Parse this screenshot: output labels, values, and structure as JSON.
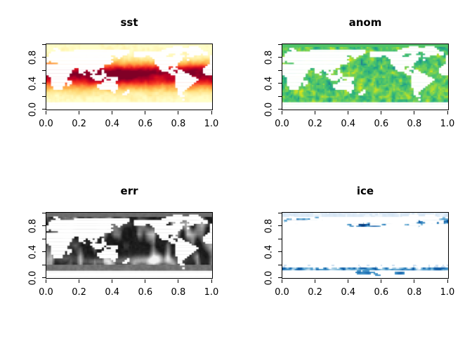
{
  "figure": {
    "background": "#ffffff",
    "text_color": "#000000",
    "layout": "2x2 panel raster plot"
  },
  "axes": {
    "x_tick_values": [
      0,
      0.2,
      0.4,
      0.6,
      0.8,
      1
    ],
    "x_tick_labels": [
      "0.0",
      "0.2",
      "0.4",
      "0.6",
      "0.8",
      "1.0"
    ],
    "y_tick_values": [
      0,
      0.2,
      0.4,
      0.6,
      0.8,
      1
    ],
    "y_labeled_ticks": [
      {
        "value": 0,
        "label": "0.0"
      },
      {
        "value": 0.4,
        "label": "0.4"
      },
      {
        "value": 0.8,
        "label": "0.8"
      }
    ]
  },
  "chart_data": [
    {
      "type": "heatmap",
      "kind": "sst",
      "title": "sst",
      "xlim": [
        0,
        1
      ],
      "ylim": [
        0,
        1
      ],
      "x_tick_labels": [
        "0.0",
        "0.2",
        "0.4",
        "0.6",
        "0.8",
        "1.0"
      ],
      "y_tick_labels": [
        "0.0",
        "0.4",
        "0.8"
      ],
      "palette": [
        "#FFFFCC",
        "#FFEDA0",
        "#FED976",
        "#FEB24C",
        "#FD8D3C",
        "#FC4E2A",
        "#E31A1C",
        "#BD0026",
        "#800026"
      ],
      "lat_profile": [
        [
          -90,
          0.02
        ],
        [
          -68,
          0.02
        ],
        [
          -55,
          0.06
        ],
        [
          -45,
          0.13
        ],
        [
          -35,
          0.3
        ],
        [
          -25,
          0.5
        ],
        [
          -15,
          0.72
        ],
        [
          -5,
          0.88
        ],
        [
          5,
          0.97
        ],
        [
          10,
          1.0
        ],
        [
          18,
          0.9
        ],
        [
          25,
          0.72
        ],
        [
          32,
          0.55
        ],
        [
          40,
          0.35
        ],
        [
          48,
          0.2
        ],
        [
          55,
          0.12
        ],
        [
          62,
          0.07
        ],
        [
          70,
          0.03
        ],
        [
          90,
          0.02
        ]
      ],
      "description": "Global sea-surface temperature on a 0-360 longitude grid; dark red tropical band fading to pale cream at high latitudes; land and Antarctica white.",
      "seed": 11
    },
    {
      "type": "heatmap",
      "kind": "anom",
      "title": "anom",
      "xlim": [
        0,
        1
      ],
      "ylim": [
        0,
        1
      ],
      "x_tick_labels": [
        "0.0",
        "0.2",
        "0.4",
        "0.6",
        "0.8",
        "1.0"
      ],
      "y_tick_labels": [
        "0.0",
        "0.4",
        "0.8"
      ],
      "palette": [
        "#2C728E",
        "#21918C",
        "#27AD81",
        "#42BE71",
        "#5EC962",
        "#84D44B",
        "#B5DE2B",
        "#DFE318",
        "#FDE725"
      ],
      "description": "SST anomaly field; mottled mid-green ocean with yellow and teal speckles, solid green strip across the Arctic top edge; land white.",
      "seed": 23
    },
    {
      "type": "heatmap",
      "kind": "err",
      "title": "err",
      "xlim": [
        0,
        1
      ],
      "ylim": [
        0,
        1
      ],
      "x_tick_labels": [
        "0.0",
        "0.2",
        "0.4",
        "0.6",
        "0.8",
        "1.0"
      ],
      "y_tick_labels": [
        "0.0",
        "0.4",
        "0.8"
      ],
      "palette": [
        "#0B0B0B",
        "#FFFFFF"
      ],
      "description": "SST error field in grayscale; mostly near-black ocean with gray blotchy columns, uniform gray polar strips, light whitish glow band in the southern tropics around x 0.5-0.75; land white.",
      "seed": 37
    },
    {
      "type": "heatmap",
      "kind": "ice",
      "title": "ice",
      "xlim": [
        0,
        1
      ],
      "ylim": [
        0,
        1
      ],
      "x_tick_labels": [
        "0.0",
        "0.2",
        "0.4",
        "0.6",
        "0.8",
        "1.0"
      ],
      "y_tick_labels": [
        "0.0",
        "0.4",
        "0.8"
      ],
      "palette": [
        "#F7FBFF",
        "#DEEBF7",
        "#C6DBEF",
        "#9ECAE1",
        "#6BAED6",
        "#4292C6",
        "#2171B5",
        "#08519C",
        "#08306B"
      ],
      "description": "Sea-ice concentration; white ocean with pale blue Arctic wash and dark blue blobs near the top (y 0.78-1.0) and a thin blue Antarctic fringe line near y 0.12-0.16.",
      "seed": 49
    }
  ],
  "world_land": {
    "cols": 72,
    "rows": 36,
    "land_runs": [
      [],
      [
        [
          55,
          58
        ],
        [
          62,
          65
        ]
      ],
      [
        [
          3,
          4
        ],
        [
          52,
          66
        ]
      ],
      [
        [
          4,
          5
        ],
        [
          12,
          35
        ],
        [
          50,
          67
        ]
      ],
      [
        [
          2,
          35
        ],
        [
          38,
          58
        ],
        [
          61,
          69
        ]
      ],
      [
        [
          1,
          34
        ],
        [
          38,
          52
        ],
        [
          56,
          57
        ],
        [
          62,
          66
        ],
        [
          68,
          69
        ]
      ],
      [
        [
          1,
          27
        ],
        [
          30,
          32
        ],
        [
          38,
          42
        ],
        [
          45,
          51
        ],
        [
          55,
          59
        ],
        [
          61,
          63
        ],
        [
          71,
          71
        ]
      ],
      [
        [
          0,
          28
        ],
        [
          31,
          31
        ],
        [
          46,
          58
        ],
        [
          71,
          71
        ]
      ],
      [
        [
          0,
          27
        ],
        [
          47,
          58
        ],
        [
          61,
          61
        ],
        [
          71,
          71
        ]
      ],
      [
        [
          0,
          0
        ],
        [
          2,
          28
        ],
        [
          47,
          57
        ],
        [
          71,
          71
        ]
      ],
      [
        [
          5,
          27
        ],
        [
          47,
          56
        ],
        [
          71,
          71
        ]
      ],
      [
        [
          0,
          24
        ],
        [
          48,
          56
        ],
        [
          70,
          71
        ]
      ],
      [
        [
          0,
          24
        ],
        [
          49,
          52
        ],
        [
          55,
          55
        ],
        [
          69,
          71
        ]
      ],
      [
        [
          0,
          11
        ],
        [
          14,
          22
        ],
        [
          49,
          52
        ],
        [
          54,
          56
        ],
        [
          68,
          71
        ]
      ],
      [
        [
          0,
          10
        ],
        [
          14,
          16
        ],
        [
          18,
          19
        ],
        [
          21,
          21
        ],
        [
          24,
          24
        ],
        [
          50,
          54
        ],
        [
          57,
          58
        ],
        [
          68,
          71
        ]
      ],
      [
        [
          0,
          10
        ],
        [
          14,
          15
        ],
        [
          19,
          21
        ],
        [
          24,
          24
        ],
        [
          53,
          55
        ],
        [
          57,
          59
        ],
        [
          68,
          71
        ]
      ],
      [
        [
          0,
          9
        ],
        [
          16,
          16
        ],
        [
          20,
          20
        ],
        [
          24,
          25
        ],
        [
          54,
          61
        ],
        [
          69,
          71
        ]
      ],
      [
        [
          1,
          9
        ],
        [
          19,
          25
        ],
        [
          56,
          62
        ]
      ],
      [
        [
          2,
          8
        ],
        [
          20,
          24
        ],
        [
          26,
          30
        ],
        [
          56,
          64
        ]
      ],
      [
        [
          2,
          8
        ],
        [
          21,
          23
        ],
        [
          25,
          25
        ],
        [
          28,
          30
        ],
        [
          56,
          65
        ]
      ],
      [
        [
          2,
          10
        ],
        [
          25,
          29
        ],
        [
          56,
          64
        ]
      ],
      [
        [
          2,
          7
        ],
        [
          9,
          10
        ],
        [
          24,
          29
        ],
        [
          56,
          63
        ]
      ],
      [
        [
          2,
          7
        ],
        [
          9,
          9
        ],
        [
          22,
          30
        ],
        [
          56,
          62
        ]
      ],
      [
        [
          3,
          6
        ],
        [
          22,
          30
        ],
        [
          56,
          61
        ]
      ],
      [
        [
          3,
          6
        ],
        [
          23,
          30
        ],
        [
          57,
          60
        ]
      ],
      [
        [
          28,
          29
        ],
        [
          35,
          35
        ],
        [
          57,
          59
        ]
      ],
      [
        [
          29,
          29
        ],
        [
          34,
          35
        ],
        [
          57,
          58
        ]
      ],
      [
        [
          33,
          34
        ],
        [
          57,
          58
        ]
      ],
      [
        [
          58,
          59
        ]
      ],
      [],
      [
        [
          59,
          59
        ]
      ],
      [],
      [
        [
          0,
          71
        ]
      ],
      [
        [
          0,
          71
        ]
      ],
      [
        [
          0,
          71
        ]
      ],
      [
        [
          0,
          71
        ]
      ]
    ]
  }
}
